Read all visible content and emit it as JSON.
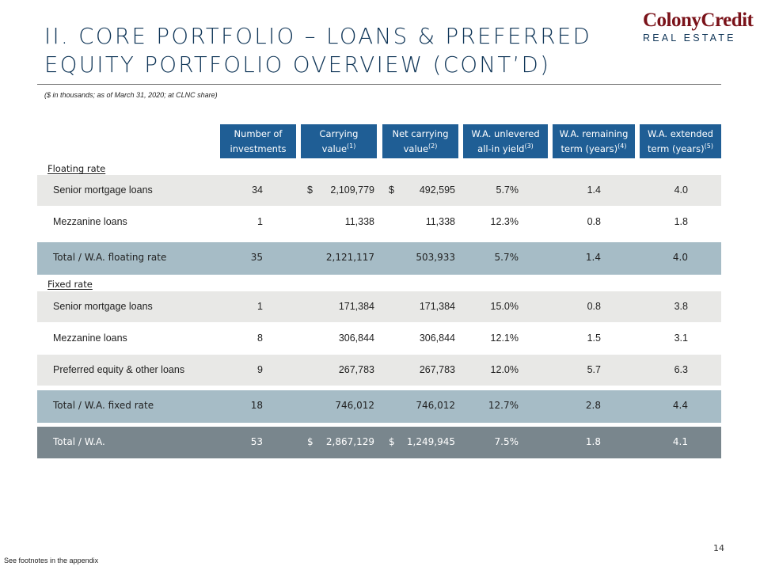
{
  "title": "II. Core Portfolio – Loans & Preferred Equity Portfolio Overview (cont’d)",
  "logo": {
    "top": "ColonyCredit",
    "bottom": "REAL ESTATE"
  },
  "subtitle": "($ in thousands; as of March 31, 2020; at CLNC share)",
  "headers": [
    {
      "line1": "Number of",
      "line2": "investments",
      "sup": ""
    },
    {
      "line1": "Carrying",
      "line2": "value",
      "sup": "(1)"
    },
    {
      "line1": "Net carrying",
      "line2": "value",
      "sup": "(2)"
    },
    {
      "line1": "W.A. unlevered",
      "line2": "all-in yield",
      "sup": "(3)"
    },
    {
      "line1": "W.A. remaining",
      "line2": "term (years)",
      "sup": "(4)"
    },
    {
      "line1": "W.A. extended",
      "line2": "term (years)",
      "sup": "(5)"
    }
  ],
  "sections": {
    "floating": "Floating rate",
    "fixed": "Fixed rate"
  },
  "rows": [
    {
      "label": "Senior mortgage loans",
      "num": "34",
      "dollar1": "$",
      "carrying": "2,109,779",
      "dollar2": "$",
      "net": "492,595",
      "yield": "5.7%",
      "remaining": "1.4",
      "extended": "4.0"
    },
    {
      "label": "Mezzanine loans",
      "num": "1",
      "dollar1": "",
      "carrying": "11,338",
      "dollar2": "",
      "net": "11,338",
      "yield": "12.3%",
      "remaining": "0.8",
      "extended": "1.8"
    },
    {
      "label": "Total / W.A. floating rate",
      "num": "35",
      "dollar1": "",
      "carrying": "2,121,117",
      "dollar2": "",
      "net": "503,933",
      "yield": "5.7%",
      "remaining": "1.4",
      "extended": "4.0"
    },
    {
      "label": "Senior mortgage loans",
      "num": "1",
      "dollar1": "",
      "carrying": "171,384",
      "dollar2": "",
      "net": "171,384",
      "yield": "15.0%",
      "remaining": "0.8",
      "extended": "3.8"
    },
    {
      "label": "Mezzanine loans",
      "num": "8",
      "dollar1": "",
      "carrying": "306,844",
      "dollar2": "",
      "net": "306,844",
      "yield": "12.1%",
      "remaining": "1.5",
      "extended": "3.1"
    },
    {
      "label": "Preferred equity & other loans",
      "num": "9",
      "dollar1": "",
      "carrying": "267,783",
      "dollar2": "",
      "net": "267,783",
      "yield": "12.0%",
      "remaining": "5.7",
      "extended": "6.3"
    },
    {
      "label": "Total / W.A. fixed rate",
      "num": "18",
      "dollar1": "",
      "carrying": "746,012",
      "dollar2": "",
      "net": "746,012",
      "yield": "12.7%",
      "remaining": "2.8",
      "extended": "4.4"
    },
    {
      "label": "Total / W.A.",
      "num": "53",
      "dollar1": "$",
      "carrying": "2,867,129",
      "dollar2": "$",
      "net": "1,249,945",
      "yield": "7.5%",
      "remaining": "1.8",
      "extended": "4.1"
    }
  ],
  "page_number": "14",
  "footnote": "See footnotes in the appendix",
  "colors": {
    "title": "#0f3557",
    "header": "#1f5e95",
    "row_shade": "#e8e8e6",
    "total_row": "#a6bcc6",
    "grand_total_row": "#79868d",
    "logo_red": "#7a1219"
  }
}
